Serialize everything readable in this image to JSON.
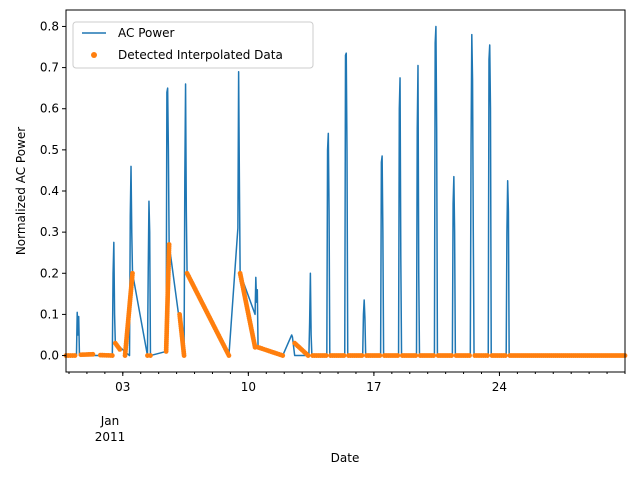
{
  "chart_data": {
    "type": "line",
    "title": "",
    "xlabel": "Date",
    "ylabel": "Normalized AC Power",
    "xlim": [
      "2010-12-30T20:00",
      "2011-01-31T00:00"
    ],
    "ylim": [
      -0.04,
      0.84
    ],
    "yticks": [
      0.0,
      0.1,
      0.2,
      0.3,
      0.4,
      0.5,
      0.6,
      0.7,
      0.8
    ],
    "ytick_labels": [
      "0.0",
      "0.1",
      "0.2",
      "0.3",
      "0.4",
      "0.5",
      "0.6",
      "0.7",
      "0.8"
    ],
    "xticks": [
      "2011-01-03",
      "2011-01-10",
      "2011-01-17",
      "2011-01-24"
    ],
    "xtick_labels": [
      "03",
      "10",
      "17",
      "24"
    ],
    "x_secondary_label": [
      "Jan",
      "2011"
    ],
    "grid": false,
    "legend_position": "upper-left",
    "colors": {
      "line": "#1f77b4",
      "scatter": "#ff7f0e"
    },
    "series": [
      {
        "name": "AC Power",
        "kind": "line",
        "points": [
          [
            "2010-12-30T20:00",
            0.0
          ],
          [
            "2010-12-31T10:00",
            0.0
          ],
          [
            "2010-12-31T11:00",
            0.105
          ],
          [
            "2010-12-31T12:00",
            0.05
          ],
          [
            "2010-12-31T13:00",
            0.095
          ],
          [
            "2010-12-31T14:00",
            0.0
          ],
          [
            "2011-01-02T10:00",
            0.0
          ],
          [
            "2011-01-02T11:00",
            0.2
          ],
          [
            "2011-01-02T12:00",
            0.275
          ],
          [
            "2011-01-02T13:00",
            0.1
          ],
          [
            "2011-01-02T14:00",
            0.03
          ],
          [
            "2011-01-03T09:00",
            0.0
          ],
          [
            "2011-01-03T10:00",
            0.34
          ],
          [
            "2011-01-03T11:00",
            0.46
          ],
          [
            "2011-01-03T12:00",
            0.3
          ],
          [
            "2011-01-03T13:00",
            0.2
          ],
          [
            "2011-01-04T09:00",
            0.0
          ],
          [
            "2011-01-04T10:00",
            0.2
          ],
          [
            "2011-01-04T11:00",
            0.375
          ],
          [
            "2011-01-04T12:00",
            0.3
          ],
          [
            "2011-01-04T13:00",
            0.0
          ],
          [
            "2011-01-05T10:00",
            0.01
          ],
          [
            "2011-01-05T11:00",
            0.64
          ],
          [
            "2011-01-05T12:00",
            0.65
          ],
          [
            "2011-01-05T13:00",
            0.5
          ],
          [
            "2011-01-05T14:00",
            0.27
          ],
          [
            "2011-01-06T10:00",
            0.0
          ],
          [
            "2011-01-06T11:00",
            0.43
          ],
          [
            "2011-01-06T12:00",
            0.66
          ],
          [
            "2011-01-06T13:00",
            0.35
          ],
          [
            "2011-01-06T14:00",
            0.2
          ],
          [
            "2011-01-08T22:00",
            0.0
          ],
          [
            "2011-01-09T10:00",
            0.31
          ],
          [
            "2011-01-09T11:00",
            0.69
          ],
          [
            "2011-01-09T12:00",
            0.43
          ],
          [
            "2011-01-09T13:00",
            0.2
          ],
          [
            "2011-01-10T09:00",
            0.1
          ],
          [
            "2011-01-10T10:00",
            0.19
          ],
          [
            "2011-01-10T11:00",
            0.13
          ],
          [
            "2011-01-10T12:00",
            0.16
          ],
          [
            "2011-01-10T13:00",
            0.02
          ],
          [
            "2011-01-11T22:00",
            0.0
          ],
          [
            "2011-01-12T10:00",
            0.05
          ],
          [
            "2011-01-12T11:00",
            0.045
          ],
          [
            "2011-01-12T14:00",
            0.0
          ],
          [
            "2011-01-13T09:00",
            0.0
          ],
          [
            "2011-01-13T10:00",
            0.08
          ],
          [
            "2011-01-13T11:00",
            0.2
          ],
          [
            "2011-01-13T12:00",
            0.05
          ],
          [
            "2011-01-13T13:00",
            0.0
          ],
          [
            "2011-01-14T09:00",
            0.0
          ],
          [
            "2011-01-14T10:00",
            0.5
          ],
          [
            "2011-01-14T11:00",
            0.54
          ],
          [
            "2011-01-14T12:00",
            0.35
          ],
          [
            "2011-01-14T13:00",
            0.0
          ],
          [
            "2011-01-15T09:00",
            0.0
          ],
          [
            "2011-01-15T10:00",
            0.73
          ],
          [
            "2011-01-15T11:00",
            0.735
          ],
          [
            "2011-01-15T12:00",
            0.5
          ],
          [
            "2011-01-15T13:00",
            0.0
          ],
          [
            "2011-01-16T09:00",
            0.0
          ],
          [
            "2011-01-16T10:00",
            0.1
          ],
          [
            "2011-01-16T11:00",
            0.135
          ],
          [
            "2011-01-16T12:00",
            0.09
          ],
          [
            "2011-01-16T13:00",
            0.0
          ],
          [
            "2011-01-17T09:00",
            0.0
          ],
          [
            "2011-01-17T10:00",
            0.47
          ],
          [
            "2011-01-17T11:00",
            0.485
          ],
          [
            "2011-01-17T12:00",
            0.3
          ],
          [
            "2011-01-17T13:00",
            0.0
          ],
          [
            "2011-01-18T09:00",
            0.0
          ],
          [
            "2011-01-18T10:00",
            0.6
          ],
          [
            "2011-01-18T11:00",
            0.675
          ],
          [
            "2011-01-18T12:00",
            0.24
          ],
          [
            "2011-01-18T13:00",
            0.0
          ],
          [
            "2011-01-19T09:00",
            0.0
          ],
          [
            "2011-01-19T10:00",
            0.55
          ],
          [
            "2011-01-19T11:00",
            0.705
          ],
          [
            "2011-01-19T12:00",
            0.2
          ],
          [
            "2011-01-19T13:00",
            0.0
          ],
          [
            "2011-01-20T09:00",
            0.0
          ],
          [
            "2011-01-20T10:00",
            0.76
          ],
          [
            "2011-01-20T11:00",
            0.8
          ],
          [
            "2011-01-20T12:00",
            0.55
          ],
          [
            "2011-01-20T13:00",
            0.0
          ],
          [
            "2011-01-21T09:00",
            0.0
          ],
          [
            "2011-01-21T10:00",
            0.37
          ],
          [
            "2011-01-21T11:00",
            0.435
          ],
          [
            "2011-01-21T12:00",
            0.3
          ],
          [
            "2011-01-21T13:00",
            0.0
          ],
          [
            "2011-01-22T09:00",
            0.0
          ],
          [
            "2011-01-22T10:00",
            0.51
          ],
          [
            "2011-01-22T11:00",
            0.78
          ],
          [
            "2011-01-22T12:00",
            0.67
          ],
          [
            "2011-01-22T13:00",
            0.3
          ],
          [
            "2011-01-22T14:00",
            0.0
          ],
          [
            "2011-01-23T09:00",
            0.0
          ],
          [
            "2011-01-23T10:00",
            0.72
          ],
          [
            "2011-01-23T11:00",
            0.755
          ],
          [
            "2011-01-23T12:00",
            0.6
          ],
          [
            "2011-01-23T13:00",
            0.0
          ],
          [
            "2011-01-24T09:00",
            0.0
          ],
          [
            "2011-01-24T10:00",
            0.3
          ],
          [
            "2011-01-24T11:00",
            0.425
          ],
          [
            "2011-01-24T12:00",
            0.35
          ],
          [
            "2011-01-24T13:00",
            0.0
          ],
          [
            "2011-01-31T00:00",
            0.0
          ]
        ]
      },
      {
        "name": "Detected Interpolated Data",
        "kind": "scatter",
        "points": [
          [
            "2010-12-30T20:00",
            0.0
          ],
          [
            "2010-12-31T08:00",
            0.0
          ],
          [
            "2010-12-31T16:00",
            0.002
          ],
          [
            "2011-01-01T08:00",
            0.003
          ],
          [
            "2011-01-01T18:00",
            0.001
          ],
          [
            "2011-01-02T10:00",
            0.0
          ],
          [
            "2011-01-02T14:00",
            0.03
          ],
          [
            "2011-01-02T20:00",
            0.015
          ],
          [
            "2011-01-03T03:00",
            0.0
          ],
          [
            "2011-01-03T13:00",
            0.2
          ],
          [
            "2011-01-04T09:00",
            0.0
          ],
          [
            "2011-01-04T13:00",
            0.0
          ],
          [
            "2011-01-05T10:00",
            0.01
          ],
          [
            "2011-01-05T14:00",
            0.27
          ],
          [
            "2011-01-06T04:00",
            0.1
          ],
          [
            "2011-01-06T10:00",
            0.0
          ],
          [
            "2011-01-06T14:00",
            0.2
          ],
          [
            "2011-01-08T22:00",
            0.0
          ],
          [
            "2011-01-09T13:00",
            0.2
          ],
          [
            "2011-01-10T09:00",
            0.02
          ],
          [
            "2011-01-10T13:00",
            0.02
          ],
          [
            "2011-01-11T22:00",
            0.0
          ],
          [
            "2011-01-12T14:00",
            0.03
          ],
          [
            "2011-01-13T08:00",
            0.0
          ],
          [
            "2011-01-13T14:00",
            0.0
          ],
          [
            "2011-01-14T08:00",
            0.0
          ],
          [
            "2011-01-14T14:00",
            0.0
          ],
          [
            "2011-01-15T08:00",
            0.0
          ],
          [
            "2011-01-15T14:00",
            0.0
          ],
          [
            "2011-01-16T08:00",
            0.0
          ],
          [
            "2011-01-16T14:00",
            0.0
          ],
          [
            "2011-01-17T08:00",
            0.0
          ],
          [
            "2011-01-17T14:00",
            0.0
          ],
          [
            "2011-01-18T08:00",
            0.0
          ],
          [
            "2011-01-18T14:00",
            0.0
          ],
          [
            "2011-01-19T08:00",
            0.0
          ],
          [
            "2011-01-19T14:00",
            0.0
          ],
          [
            "2011-01-20T08:00",
            0.0
          ],
          [
            "2011-01-20T14:00",
            0.0
          ],
          [
            "2011-01-21T08:00",
            0.0
          ],
          [
            "2011-01-21T14:00",
            0.0
          ],
          [
            "2011-01-22T08:00",
            0.0
          ],
          [
            "2011-01-22T15:00",
            0.0
          ],
          [
            "2011-01-23T08:00",
            0.0
          ],
          [
            "2011-01-23T14:00",
            0.0
          ],
          [
            "2011-01-24T08:00",
            0.0
          ],
          [
            "2011-01-24T14:00",
            0.0
          ],
          [
            "2011-01-31T00:00",
            0.0
          ]
        ]
      }
    ]
  }
}
